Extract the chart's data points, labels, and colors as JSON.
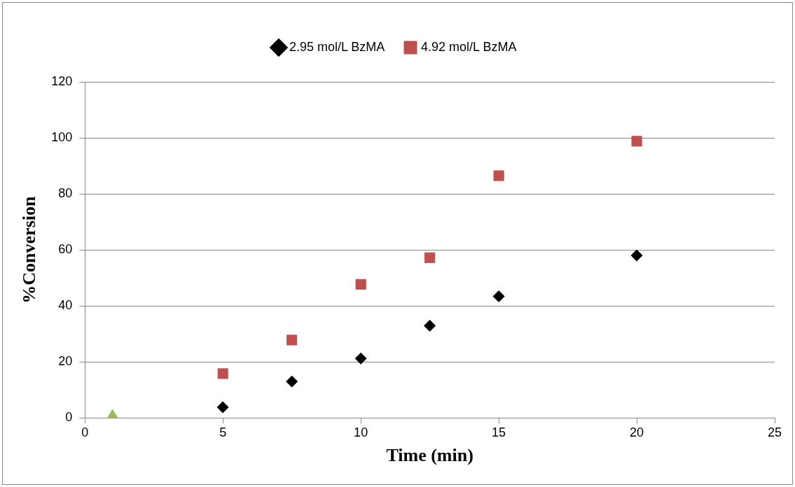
{
  "chart_data": {
    "type": "scatter",
    "xlabel": "Time (min)",
    "ylabel": "%Conversion",
    "series": [
      {
        "name": "2.95 mol/L BzMA",
        "color": "#000000",
        "marker": "diamond",
        "x": [
          5,
          7.5,
          10,
          12.5,
          15,
          20
        ],
        "values": [
          3.8,
          13.0,
          21.2,
          32.9,
          43.4,
          58.0
        ]
      },
      {
        "name": "4.92 mol/L BzMA",
        "color": "#c0504d",
        "marker": "square",
        "x": [
          5,
          7.5,
          10,
          12.5,
          15,
          20
        ],
        "values": [
          15.8,
          27.8,
          47.7,
          57.2,
          86.5,
          98.8
        ]
      },
      {
        "color": "#9bbb59",
        "marker": "triangle",
        "x": [
          1
        ],
        "values": [
          0.8
        ]
      }
    ],
    "xlim": [
      0,
      25
    ],
    "xticks": [
      0,
      5,
      10,
      15,
      20,
      25
    ],
    "ylim": [
      0,
      120
    ],
    "yticks": [
      0,
      20,
      40,
      60,
      80,
      100,
      120
    ],
    "grid": "y",
    "legend": "top"
  }
}
